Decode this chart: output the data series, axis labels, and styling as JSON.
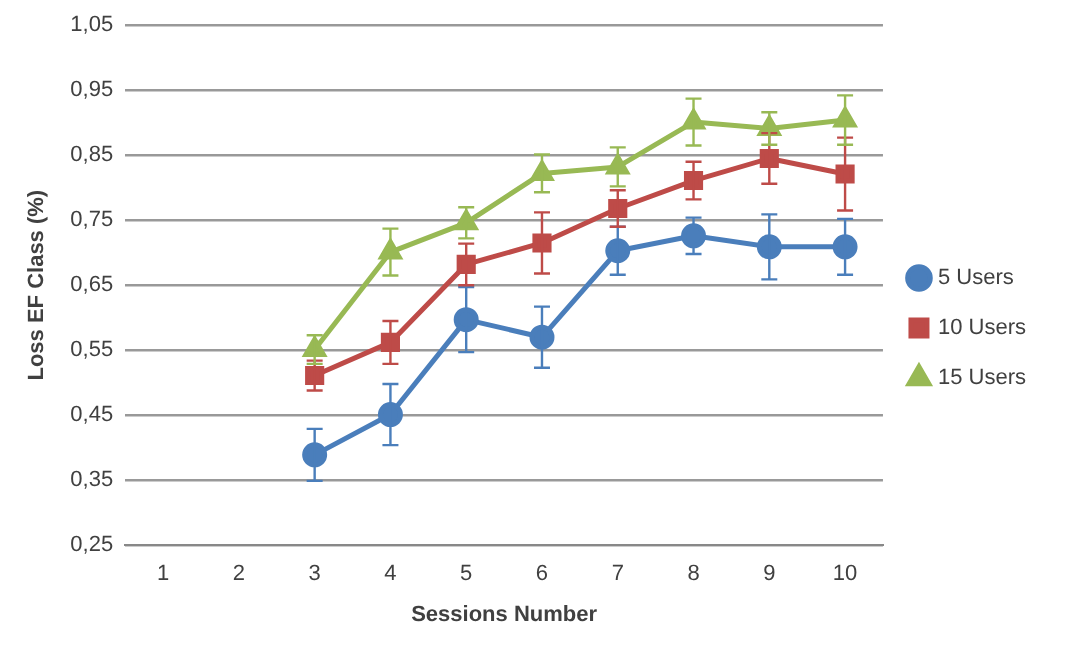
{
  "chart_data": {
    "type": "line",
    "xlabel": "Sessions Number",
    "ylabel": "Loss EF Class (%)",
    "categories": [
      "1",
      "2",
      "3",
      "4",
      "5",
      "6",
      "7",
      "8",
      "9",
      "10"
    ],
    "series": [
      {
        "name": "5 Users",
        "color": "#4a7ebb",
        "marker": "circle",
        "values": [
          null,
          null,
          0.389,
          0.451,
          0.597,
          0.57,
          0.703,
          0.726,
          0.709,
          0.709
        ],
        "errors": [
          null,
          null,
          0.04,
          0.047,
          0.05,
          0.047,
          0.037,
          0.028,
          0.05,
          0.043
        ]
      },
      {
        "name": "10 Users",
        "color": "#be4b48",
        "marker": "square",
        "values": [
          null,
          null,
          0.511,
          0.562,
          0.682,
          0.715,
          0.768,
          0.811,
          0.845,
          0.821
        ],
        "errors": [
          null,
          null,
          0.023,
          0.033,
          0.032,
          0.047,
          0.028,
          0.029,
          0.039,
          0.056
        ]
      },
      {
        "name": "15 Users",
        "color": "#98b954",
        "marker": "triangle",
        "values": [
          null,
          null,
          0.551,
          0.701,
          0.746,
          0.822,
          0.832,
          0.901,
          0.891,
          0.904
        ],
        "errors": [
          null,
          null,
          0.022,
          0.036,
          0.024,
          0.029,
          0.03,
          0.036,
          0.025,
          0.038
        ]
      }
    ],
    "ylim": [
      0.25,
      1.05
    ],
    "yticks": [
      {
        "value": 0.25,
        "label": "0,25"
      },
      {
        "value": 0.35,
        "label": "0,35"
      },
      {
        "value": 0.45,
        "label": "0,45"
      },
      {
        "value": 0.55,
        "label": "0,55"
      },
      {
        "value": 0.65,
        "label": "0,65"
      },
      {
        "value": 0.75,
        "label": "0,75"
      },
      {
        "value": 0.85,
        "label": "0,85"
      },
      {
        "value": 0.95,
        "label": "0,95"
      },
      {
        "value": 1.05,
        "label": "1,05"
      }
    ],
    "grid": "y",
    "legend": "right",
    "line_style": "solid"
  }
}
